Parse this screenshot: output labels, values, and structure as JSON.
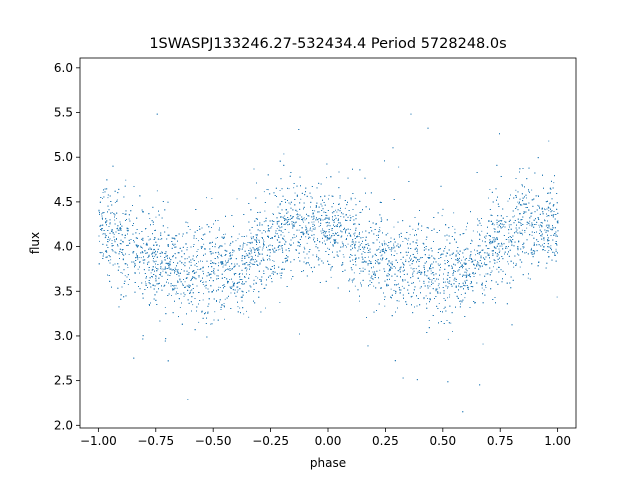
{
  "chart_data": {
    "type": "scatter",
    "title": "1SWASPJ133246.27-532434.4 Period 5728248.0s",
    "xlabel": "phase",
    "ylabel": "flux",
    "xlim": [
      -1.08,
      1.08
    ],
    "ylim": [
      1.97,
      6.11
    ],
    "xticks": [
      -1.0,
      -0.75,
      -0.5,
      -0.25,
      0.0,
      0.25,
      0.5,
      0.75,
      1.0
    ],
    "xtick_labels": [
      "−1.00",
      "−0.75",
      "−0.50",
      "−0.25",
      "0.00",
      "0.25",
      "0.50",
      "0.75",
      "1.00"
    ],
    "yticks": [
      2.0,
      2.5,
      3.0,
      3.5,
      4.0,
      4.5,
      5.0,
      5.5,
      6.0
    ],
    "ytick_labels": [
      "2.0",
      "2.5",
      "3.0",
      "3.5",
      "4.0",
      "4.5",
      "5.0",
      "5.5",
      "6.0"
    ],
    "grid": false,
    "marker_color": "#1f77b4",
    "series": [
      {
        "phase": [
          -1.0,
          -0.95,
          -0.9,
          -0.85,
          -0.8,
          -0.75,
          -0.7,
          -0.65,
          -0.6,
          -0.55,
          -0.5,
          -0.45,
          -0.4,
          -0.35,
          -0.3,
          -0.25,
          -0.2,
          -0.15,
          -0.1,
          -0.05,
          0.0,
          0.05,
          0.1,
          0.15,
          0.2,
          0.25,
          0.3,
          0.35,
          0.4,
          0.45,
          0.5,
          0.55,
          0.6,
          0.65,
          0.7,
          0.75,
          0.8,
          0.85,
          0.9,
          0.95,
          1.0
        ],
        "flux_mean": [
          4.25,
          4.15,
          4.05,
          3.95,
          3.9,
          3.85,
          3.8,
          3.75,
          3.8,
          3.75,
          3.75,
          3.75,
          3.7,
          3.85,
          3.95,
          4.05,
          4.2,
          4.25,
          4.2,
          4.2,
          4.25,
          4.15,
          4.05,
          3.95,
          3.9,
          3.85,
          3.8,
          3.75,
          3.8,
          3.75,
          3.75,
          3.75,
          3.7,
          3.85,
          3.95,
          4.05,
          4.2,
          4.25,
          4.2,
          4.2,
          4.25
        ],
        "flux_spread": [
          0.22,
          0.25,
          0.3,
          0.28,
          0.25,
          0.25,
          0.25,
          0.25,
          0.25,
          0.25,
          0.3,
          0.25,
          0.22,
          0.25,
          0.25,
          0.25,
          0.25,
          0.25,
          0.25,
          0.22,
          0.22,
          0.25,
          0.3,
          0.28,
          0.25,
          0.25,
          0.25,
          0.25,
          0.25,
          0.25,
          0.3,
          0.25,
          0.22,
          0.25,
          0.25,
          0.25,
          0.25,
          0.25,
          0.25,
          0.22,
          0.22
        ],
        "flux_min": 2.15,
        "flux_max": 5.95
      }
    ]
  }
}
